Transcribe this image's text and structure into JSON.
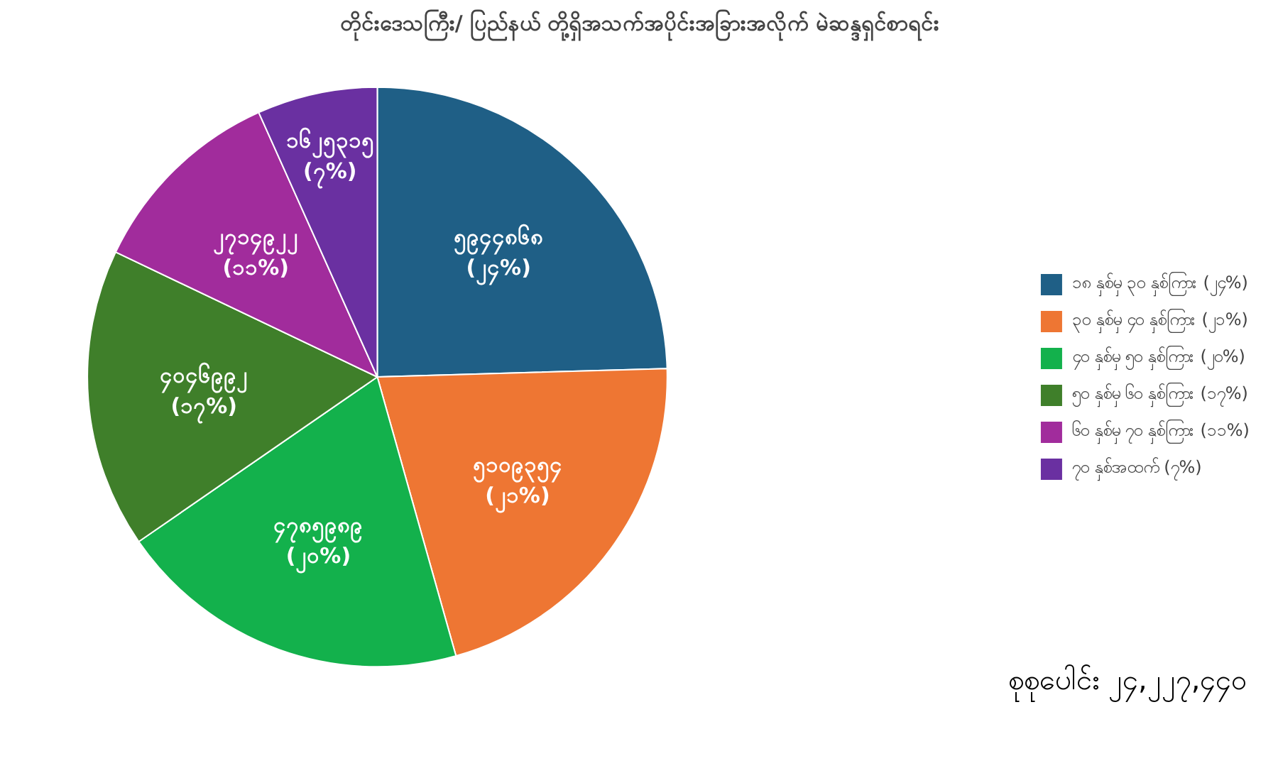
{
  "chart_data": {
    "type": "pie",
    "title": "တိုင်းဒေသကြီး/ ပြည်နယ် တို့ရှိအသက်အပိုင်းအခြားအလိုက် မဲဆန္ဒရှင်စာရင်း",
    "categories": [
      "၁၈ နှစ်မှ ၃၀ နှစ်ကြား (၂၄%)",
      "၃၀ နှစ်မှ ၄၀ နှစ်ကြား (၂၁%)",
      "၄၀ နှစ်မှ ၅၀ နှစ်ကြား (၂၀%)",
      "၅၀ နှစ်မှ ၆၀ နှစ်ကြား (၁၇%)",
      "၆၀ နှစ်မှ ၇၀ နှစ်ကြား (၁၁%)",
      "၇၀ နှစ်အထက် (၇%)"
    ],
    "values": [
      5944868,
      5109354,
      4785989,
      4046992,
      2714922,
      1625315
    ],
    "value_labels": [
      "၅၉၄၄၈၆၈\n(၂၄%)",
      "၅၁၀၉၃၅၄\n(၂၁%)",
      "၄၇၈၅၉၈၉\n(၂၀%)",
      "၄၀၄၆၉၉၂\n(၁၇%)",
      "၂၇၁၄၉၂၂\n(၁၁%)",
      "၁၆၂၅၃၁၅\n(၇%)"
    ],
    "colors": [
      "#1f5f86",
      "#ee7633",
      "#13b14c",
      "#3f7f2a",
      "#a12c9c",
      "#6a30a1"
    ],
    "legend": "right",
    "annotations": [
      "စုစုပေါင်း ၂၄,၂၂၇,၄၄၀"
    ]
  }
}
